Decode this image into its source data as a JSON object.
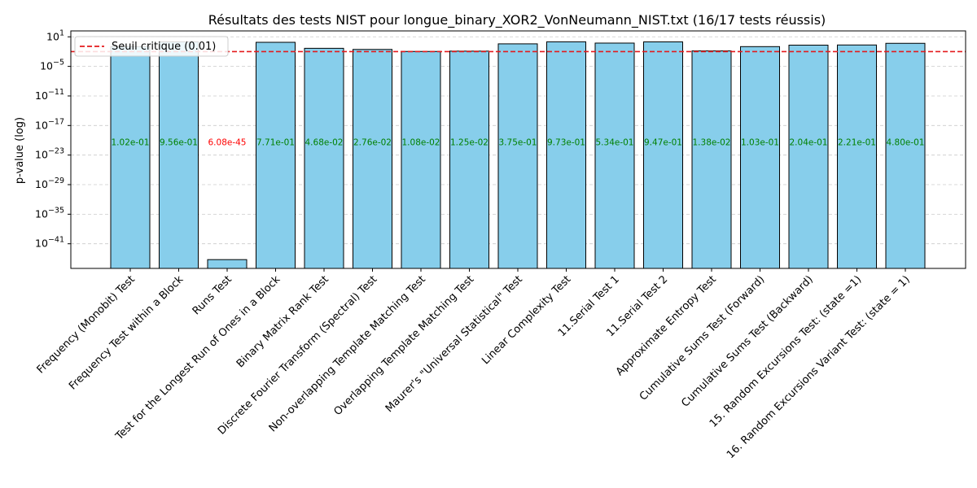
{
  "chart_data": {
    "type": "bar",
    "title": "Résultats des tests NIST pour longue_binary_XOR2_VonNeumann_NIST.txt (16/17 tests réussis)",
    "xlabel": "",
    "ylabel": "p-value (log)",
    "yscale": "log",
    "ylim_exponent": [
      -46,
      2.2
    ],
    "ytick_exponents": [
      1,
      -5,
      -11,
      -17,
      -23,
      -29,
      -35,
      -41
    ],
    "grid": "horizontal dashed",
    "legend_position": "top-left",
    "threshold": {
      "value": 0.01,
      "label": "Seuil critique (0.01)",
      "color": "#e41a1c"
    },
    "categories": [
      "Frequency (Monobit) Test",
      "Frequency Test within a Block",
      "Runs Test",
      "Test for the Longest Run of Ones in a Block",
      "Binary Matrix Rank Test",
      "Discrete Fourier Transform (Spectral) Test",
      "Non-overlapping Template Matching Test",
      "Overlapping Template Matching Test",
      "Maurer's \"Universal Statistical\" Test",
      "Linear Complexity Test",
      "11.Serial Test 1",
      "11.Serial Test 2",
      "Approximate Entropy Test",
      "Cumulative Sums Test (Forward)",
      "Cumulative Sums Test (Backward)",
      "15. Random Excursions Test: (state =1)",
      "16. Random Excursions Variant Test: (state = 1)"
    ],
    "values": [
      0.102,
      0.956,
      6.08e-45,
      0.771,
      0.0468,
      0.0276,
      0.0108,
      0.0125,
      0.375,
      0.973,
      0.534,
      0.947,
      0.0138,
      0.103,
      0.204,
      0.221,
      0.48
    ],
    "value_labels": [
      "1.02e-01",
      "9.56e-01",
      "6.08e-45",
      "7.71e-01",
      "4.68e-02",
      "2.76e-02",
      "1.08e-02",
      "1.25e-02",
      "3.75e-01",
      "9.73e-01",
      "5.34e-01",
      "9.47e-01",
      "1.38e-02",
      "1.03e-01",
      "2.04e-01",
      "2.21e-01",
      "4.80e-01"
    ],
    "colors": {
      "bar": "#87ceeb",
      "bar_edge": "#000000",
      "pass_text": "#008000",
      "fail_text": "#ff0000",
      "grid": "#cccccc"
    }
  }
}
